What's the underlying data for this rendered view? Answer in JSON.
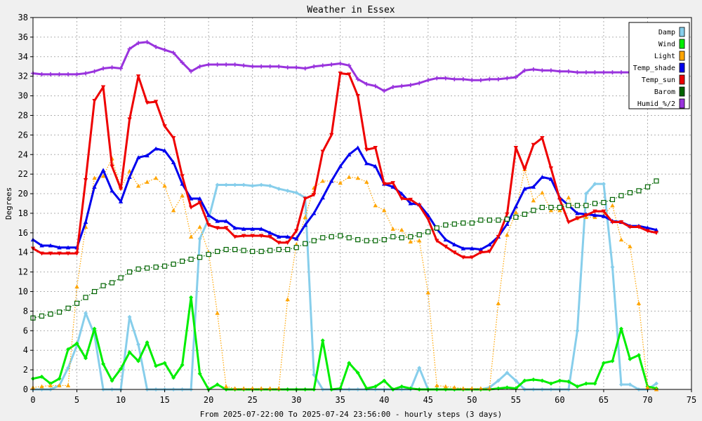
{
  "chart_data": {
    "type": "line",
    "title": "Weather in Essex",
    "ylabel": "Degrees",
    "xlabel": "From 2025-07-22:00 To 2025-07-24 23:56:00 - hourly steps (3 days)",
    "xlim": [
      0,
      75
    ],
    "ylim": [
      0,
      38
    ],
    "x_ticks": [
      0,
      5,
      10,
      15,
      20,
      25,
      30,
      35,
      40,
      45,
      50,
      55,
      60,
      65,
      70,
      75
    ],
    "y_ticks": [
      0,
      2,
      4,
      6,
      8,
      10,
      12,
      14,
      16,
      18,
      20,
      22,
      24,
      26,
      28,
      30,
      32,
      34,
      36,
      38
    ],
    "grid": true,
    "legend_position": "top-right",
    "background": "#f0f0f0",
    "plot_background": "#ffffff",
    "series": [
      {
        "name": "Damp",
        "color": "#87ceeb",
        "style": "solid",
        "marker": "diamond",
        "x": [
          0,
          1,
          2,
          3,
          4,
          5,
          6,
          7,
          8,
          9,
          10,
          11,
          12,
          13,
          14,
          15,
          16,
          17,
          18,
          19,
          20,
          21,
          22,
          23,
          24,
          25,
          26,
          27,
          28,
          29,
          30,
          31,
          32,
          33,
          34,
          35,
          36,
          37,
          38,
          39,
          40,
          41,
          42,
          43,
          44,
          45,
          46,
          47,
          48,
          49,
          50,
          51,
          52,
          53,
          54,
          55,
          56,
          57,
          58,
          59,
          60,
          61,
          62,
          63,
          64,
          65,
          66,
          67,
          68,
          69,
          70,
          71
        ],
        "values": [
          0,
          0,
          0,
          0.4,
          2.2,
          4.5,
          7.8,
          5.6,
          0,
          0,
          0,
          7.4,
          4.6,
          0,
          0,
          0,
          0,
          0,
          0,
          15.4,
          17.4,
          20.9,
          20.9,
          20.9,
          20.9,
          20.8,
          20.9,
          20.8,
          20.5,
          20.3,
          20.1,
          19.6,
          1.5,
          0,
          0,
          0,
          0,
          0,
          0,
          0,
          0,
          0,
          0,
          0,
          2.2,
          0,
          0,
          0,
          0,
          0,
          0,
          0,
          0.2,
          0.9,
          1.7,
          0.9,
          0,
          0,
          0,
          0,
          0,
          0,
          6.0,
          20.0,
          21.0,
          21.0,
          12.5,
          0.5,
          0.5,
          0,
          0,
          0.6
        ]
      },
      {
        "name": "Wind",
        "color": "#00ee00",
        "style": "solid",
        "marker": "diamond",
        "x": [
          0,
          1,
          2,
          3,
          4,
          5,
          6,
          7,
          8,
          9,
          10,
          11,
          12,
          13,
          14,
          15,
          16,
          17,
          18,
          19,
          20,
          21,
          22,
          23,
          24,
          25,
          26,
          27,
          28,
          29,
          30,
          31,
          32,
          33,
          34,
          35,
          36,
          37,
          38,
          39,
          40,
          41,
          42,
          43,
          44,
          45,
          46,
          47,
          48,
          49,
          50,
          51,
          52,
          53,
          54,
          55,
          56,
          57,
          58,
          59,
          60,
          61,
          62,
          63,
          64,
          65,
          66,
          67,
          68,
          69,
          70,
          71
        ],
        "values": [
          1.1,
          1.3,
          0.6,
          1.1,
          4.1,
          4.7,
          3.2,
          6.2,
          2.6,
          0.9,
          2.1,
          3.8,
          2.9,
          4.8,
          2.4,
          2.7,
          1.2,
          2.5,
          9.4,
          1.6,
          0,
          0.5,
          0,
          0,
          0,
          0,
          0,
          0,
          0,
          0,
          0,
          0,
          0,
          5.0,
          0,
          0.1,
          2.7,
          1.7,
          0.1,
          0.3,
          0.9,
          0,
          0.3,
          0.1,
          0,
          0,
          0,
          0,
          0,
          0,
          0,
          0,
          0,
          0.1,
          0.2,
          0.1,
          0.9,
          1.0,
          0.9,
          0.6,
          0.9,
          0.8,
          0.3,
          0.6,
          0.6,
          2.7,
          2.9,
          6.2,
          3.1,
          3.5,
          0.3,
          0.1
        ]
      },
      {
        "name": "Light",
        "color": "#ffa500",
        "style": "dotted",
        "marker": "triangle",
        "x": [
          0,
          1,
          2,
          3,
          4,
          5,
          6,
          7,
          8,
          9,
          10,
          11,
          12,
          13,
          14,
          15,
          16,
          17,
          18,
          19,
          20,
          21,
          22,
          23,
          24,
          25,
          26,
          27,
          28,
          29,
          30,
          31,
          32,
          33,
          34,
          35,
          36,
          37,
          38,
          39,
          40,
          41,
          42,
          43,
          44,
          45,
          46,
          47,
          48,
          49,
          50,
          51,
          52,
          53,
          54,
          55,
          56,
          57,
          58,
          59,
          60,
          61,
          62,
          63,
          64,
          65,
          66,
          67,
          68,
          69,
          70,
          71
        ],
        "values": [
          0.2,
          0.3,
          0.4,
          0.4,
          0.4,
          10.5,
          16.6,
          21.6,
          21.8,
          23.6,
          20.6,
          22.3,
          20.8,
          21.2,
          21.6,
          20.8,
          18.3,
          19.8,
          15.6,
          16.6,
          14.0,
          7.8,
          0.3,
          0.1,
          0.1,
          0.1,
          0.1,
          0.1,
          0.1,
          9.2,
          14.8,
          17.6,
          20.6,
          21.3,
          21.3,
          21.1,
          21.7,
          21.6,
          21.2,
          18.8,
          18.3,
          16.4,
          16.3,
          15.1,
          15.2,
          9.9,
          0.4,
          0.3,
          0.2,
          0.1,
          0.1,
          0.1,
          0.1,
          8.8,
          15.8,
          18.1,
          22.5,
          19.3,
          20.1,
          18.3,
          18.3,
          19.6,
          17.5,
          17.6,
          17.6,
          17.8,
          18.8,
          15.3,
          14.6,
          8.8,
          0.2,
          0
        ]
      },
      {
        "name": "Temp_shade",
        "color": "#0000ee",
        "style": "solid",
        "marker": "triangle",
        "x": [
          0,
          1,
          2,
          3,
          4,
          5,
          6,
          7,
          8,
          9,
          10,
          11,
          12,
          13,
          14,
          15,
          16,
          17,
          18,
          19,
          20,
          21,
          22,
          23,
          24,
          25,
          26,
          27,
          28,
          29,
          30,
          31,
          32,
          33,
          34,
          35,
          36,
          37,
          38,
          39,
          40,
          41,
          42,
          43,
          44,
          45,
          46,
          47,
          48,
          49,
          50,
          51,
          52,
          53,
          54,
          55,
          56,
          57,
          58,
          59,
          60,
          61,
          62,
          63,
          64,
          65,
          66,
          67,
          68,
          69,
          70,
          71
        ],
        "values": [
          15.3,
          14.7,
          14.7,
          14.5,
          14.5,
          14.5,
          17.1,
          20.7,
          22.4,
          20.3,
          19.2,
          21.7,
          23.7,
          23.9,
          24.6,
          24.4,
          23.2,
          21.0,
          19.5,
          19.5,
          17.8,
          17.2,
          17.2,
          16.5,
          16.4,
          16.4,
          16.4,
          16.0,
          15.6,
          15.6,
          15.4,
          16.8,
          18.0,
          19.6,
          21.3,
          22.8,
          24.0,
          24.7,
          23.1,
          22.8,
          21.0,
          20.7,
          20.0,
          19.0,
          18.9,
          17.8,
          16.4,
          15.3,
          14.8,
          14.4,
          14.4,
          14.3,
          14.8,
          15.6,
          16.9,
          18.7,
          20.5,
          20.7,
          21.7,
          21.5,
          19.6,
          18.8,
          18.0,
          17.9,
          17.8,
          17.7,
          17.2,
          17.1,
          16.7,
          16.7,
          16.5,
          16.3
        ]
      },
      {
        "name": "Temp_sun",
        "color": "#ee0000",
        "style": "solid",
        "marker": "triangle-down",
        "x": [
          0,
          1,
          2,
          3,
          4,
          5,
          6,
          7,
          8,
          9,
          10,
          11,
          12,
          13,
          14,
          15,
          16,
          17,
          18,
          19,
          20,
          21,
          22,
          23,
          24,
          25,
          26,
          27,
          28,
          29,
          30,
          31,
          32,
          33,
          34,
          35,
          36,
          37,
          38,
          39,
          40,
          41,
          42,
          43,
          44,
          45,
          46,
          47,
          48,
          49,
          50,
          51,
          52,
          53,
          54,
          55,
          56,
          57,
          58,
          59,
          60,
          61,
          62,
          63,
          64,
          65,
          66,
          67,
          68,
          69,
          70,
          71
        ],
        "values": [
          14.4,
          13.9,
          13.9,
          13.9,
          13.9,
          13.9,
          21.4,
          29.5,
          30.9,
          22.8,
          20.5,
          27.6,
          32.0,
          29.3,
          29.4,
          26.9,
          25.7,
          21.8,
          18.6,
          19.1,
          16.8,
          16.5,
          16.5,
          15.6,
          15.7,
          15.7,
          15.7,
          15.6,
          15.0,
          15.0,
          16.2,
          19.5,
          19.9,
          24.3,
          26.0,
          32.3,
          32.2,
          30.0,
          24.5,
          24.7,
          21.0,
          21.1,
          19.5,
          19.4,
          18.8,
          17.4,
          15.2,
          14.6,
          14.0,
          13.5,
          13.5,
          14.0,
          14.1,
          15.6,
          17.9,
          24.7,
          22.5,
          25.0,
          25.7,
          22.6,
          19.4,
          17.1,
          17.5,
          17.8,
          18.2,
          18.2,
          17.1,
          17.1,
          16.6,
          16.6,
          16.2,
          16.0
        ]
      },
      {
        "name": "Barom",
        "color": "#006400",
        "style": "dotted",
        "marker": "square",
        "x": [
          0,
          1,
          2,
          3,
          4,
          5,
          6,
          7,
          8,
          9,
          10,
          11,
          12,
          13,
          14,
          15,
          16,
          17,
          18,
          19,
          20,
          21,
          22,
          23,
          24,
          25,
          26,
          27,
          28,
          29,
          30,
          31,
          32,
          33,
          34,
          35,
          36,
          37,
          38,
          39,
          40,
          41,
          42,
          43,
          44,
          45,
          46,
          47,
          48,
          49,
          50,
          51,
          52,
          53,
          54,
          55,
          56,
          57,
          58,
          59,
          60,
          61,
          62,
          63,
          64,
          65,
          66,
          67,
          68,
          69,
          70,
          71
        ],
        "values": [
          7.3,
          7.5,
          7.7,
          7.9,
          8.3,
          8.8,
          9.4,
          10.0,
          10.6,
          10.9,
          11.4,
          12.0,
          12.3,
          12.4,
          12.5,
          12.6,
          12.8,
          13.1,
          13.3,
          13.5,
          13.8,
          14.1,
          14.3,
          14.3,
          14.2,
          14.1,
          14.1,
          14.2,
          14.3,
          14.3,
          14.5,
          14.9,
          15.2,
          15.5,
          15.6,
          15.7,
          15.5,
          15.3,
          15.2,
          15.2,
          15.3,
          15.6,
          15.5,
          15.6,
          15.8,
          16.1,
          16.5,
          16.8,
          16.9,
          17.0,
          17.0,
          17.3,
          17.3,
          17.3,
          17.4,
          17.6,
          17.9,
          18.3,
          18.6,
          18.6,
          18.6,
          18.8,
          18.8,
          18.8,
          19.0,
          19.1,
          19.4,
          19.8,
          20.1,
          20.3,
          20.7,
          21.3
        ]
      },
      {
        "name": "Humid_%/2",
        "color": "#9933dd",
        "style": "solid",
        "marker": "plus",
        "x": [
          0,
          1,
          2,
          3,
          4,
          5,
          6,
          7,
          8,
          9,
          10,
          11,
          12,
          13,
          14,
          15,
          16,
          17,
          18,
          19,
          20,
          21,
          22,
          23,
          24,
          25,
          26,
          27,
          28,
          29,
          30,
          31,
          32,
          33,
          34,
          35,
          36,
          37,
          38,
          39,
          40,
          41,
          42,
          43,
          44,
          45,
          46,
          47,
          48,
          49,
          50,
          51,
          52,
          53,
          54,
          55,
          56,
          57,
          58,
          59,
          60,
          61,
          62,
          63,
          64,
          65,
          66,
          67,
          68,
          69,
          70,
          71
        ],
        "values": [
          32.3,
          32.2,
          32.2,
          32.2,
          32.2,
          32.2,
          32.3,
          32.5,
          32.8,
          32.9,
          32.8,
          34.8,
          35.4,
          35.5,
          35.0,
          34.7,
          34.4,
          33.4,
          32.5,
          33.0,
          33.2,
          33.2,
          33.2,
          33.2,
          33.1,
          33.0,
          33.0,
          33.0,
          33.0,
          32.9,
          32.9,
          32.8,
          33.0,
          33.1,
          33.2,
          33.3,
          33.1,
          31.7,
          31.2,
          31.0,
          30.5,
          30.9,
          31.0,
          31.1,
          31.3,
          31.6,
          31.8,
          31.8,
          31.7,
          31.7,
          31.6,
          31.6,
          31.7,
          31.7,
          31.8,
          31.9,
          32.6,
          32.7,
          32.6,
          32.6,
          32.5,
          32.5,
          32.4,
          32.4,
          32.4,
          32.4,
          32.4,
          32.4,
          32.4,
          32.2,
          32.2,
          32.2
        ]
      }
    ]
  }
}
